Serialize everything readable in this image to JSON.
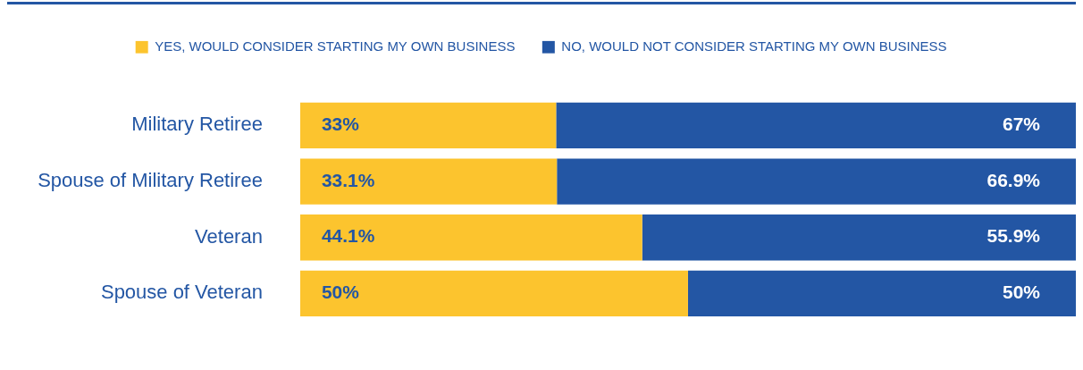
{
  "chart_data": {
    "type": "bar",
    "orientation": "horizontal",
    "stacked": true,
    "categories": [
      "Military Retiree",
      "Spouse of Military Retiree",
      "Veteran",
      "Spouse of Veteran"
    ],
    "series": [
      {
        "name": "YES, WOULD CONSIDER STARTING MY OWN BUSINESS",
        "color": "#fcc42e",
        "values": [
          33,
          33.1,
          44.1,
          50
        ],
        "value_labels": [
          "33%",
          "33.1%",
          "44.1%",
          "50%"
        ]
      },
      {
        "name": "NO, WOULD NOT CONSIDER STARTING MY OWN BUSINESS",
        "color": "#2356a4",
        "values": [
          67,
          66.9,
          55.9,
          50
        ],
        "value_labels": [
          "67%",
          "66.9%",
          "55.9%",
          "50%"
        ]
      }
    ],
    "xlim": [
      0,
      100
    ],
    "tick_labels": "y",
    "grid": false,
    "legend": "top"
  }
}
